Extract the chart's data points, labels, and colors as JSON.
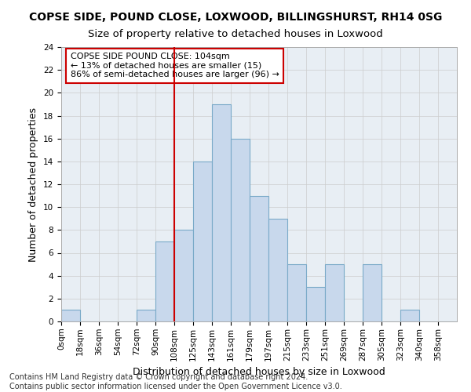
{
  "title": "COPSE SIDE, POUND CLOSE, LOXWOOD, BILLINGSHURST, RH14 0SG",
  "subtitle": "Size of property relative to detached houses in Loxwood",
  "xlabel": "Distribution of detached houses by size in Loxwood",
  "ylabel": "Number of detached properties",
  "bin_labels": [
    "0sqm",
    "18sqm",
    "36sqm",
    "54sqm",
    "72sqm",
    "90sqm",
    "108sqm",
    "125sqm",
    "143sqm",
    "161sqm",
    "179sqm",
    "197sqm",
    "215sqm",
    "233sqm",
    "251sqm",
    "269sqm",
    "287sqm",
    "305sqm",
    "323sqm",
    "340sqm",
    "358sqm"
  ],
  "bar_values": [
    1,
    0,
    0,
    0,
    1,
    7,
    8,
    14,
    19,
    16,
    11,
    9,
    5,
    3,
    5,
    0,
    5,
    0,
    1,
    0,
    0
  ],
  "bar_color": "#c8d8ec",
  "bar_edge_color": "#7aaac8",
  "ylim": [
    0,
    24
  ],
  "yticks": [
    0,
    2,
    4,
    6,
    8,
    10,
    12,
    14,
    16,
    18,
    20,
    22,
    24
  ],
  "property_line_x": 6.0,
  "property_line_color": "#cc0000",
  "annotation_text": "COPSE SIDE POUND CLOSE: 104sqm\n← 13% of detached houses are smaller (15)\n86% of semi-detached houses are larger (96) →",
  "annotation_box_color": "#ffffff",
  "annotation_box_edge_color": "#cc0000",
  "footer_text": "Contains HM Land Registry data © Crown copyright and database right 2024.\nContains public sector information licensed under the Open Government Licence v3.0.",
  "title_fontsize": 10,
  "subtitle_fontsize": 9.5,
  "annotation_fontsize": 8,
  "axis_label_fontsize": 9,
  "tick_fontsize": 7.5,
  "footer_fontsize": 7,
  "bg_color": "#e8eef4"
}
